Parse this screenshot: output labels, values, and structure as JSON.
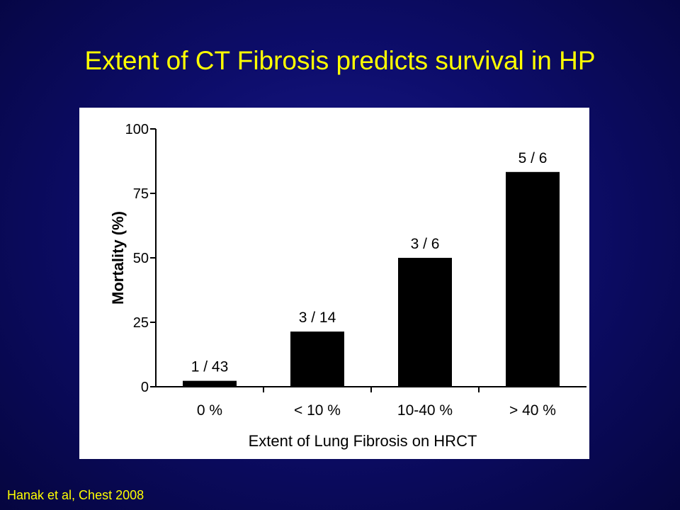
{
  "slide": {
    "title": "Extent of CT Fibrosis predicts survival in HP",
    "citation": "Hanak et al, Chest 2008",
    "colors": {
      "background": "#0d0d6b",
      "title": "#ffff00",
      "bars": "#000000",
      "panel": "#ffffff"
    }
  },
  "chart_data": {
    "type": "bar",
    "title": "",
    "xlabel": "Extent of Lung Fibrosis on HRCT",
    "ylabel": "Mortality (%)",
    "categories": [
      "0 %",
      "< 10 %",
      "10-40 %",
      "> 40 %"
    ],
    "values": [
      2.3,
      21.4,
      50,
      83.3
    ],
    "data_labels": [
      "1 / 43",
      "3 / 14",
      "3 / 6",
      "5 / 6"
    ],
    "ylim": [
      0,
      100
    ],
    "yticks": [
      0,
      25,
      50,
      75,
      100
    ],
    "grid": false,
    "legend": "none"
  }
}
